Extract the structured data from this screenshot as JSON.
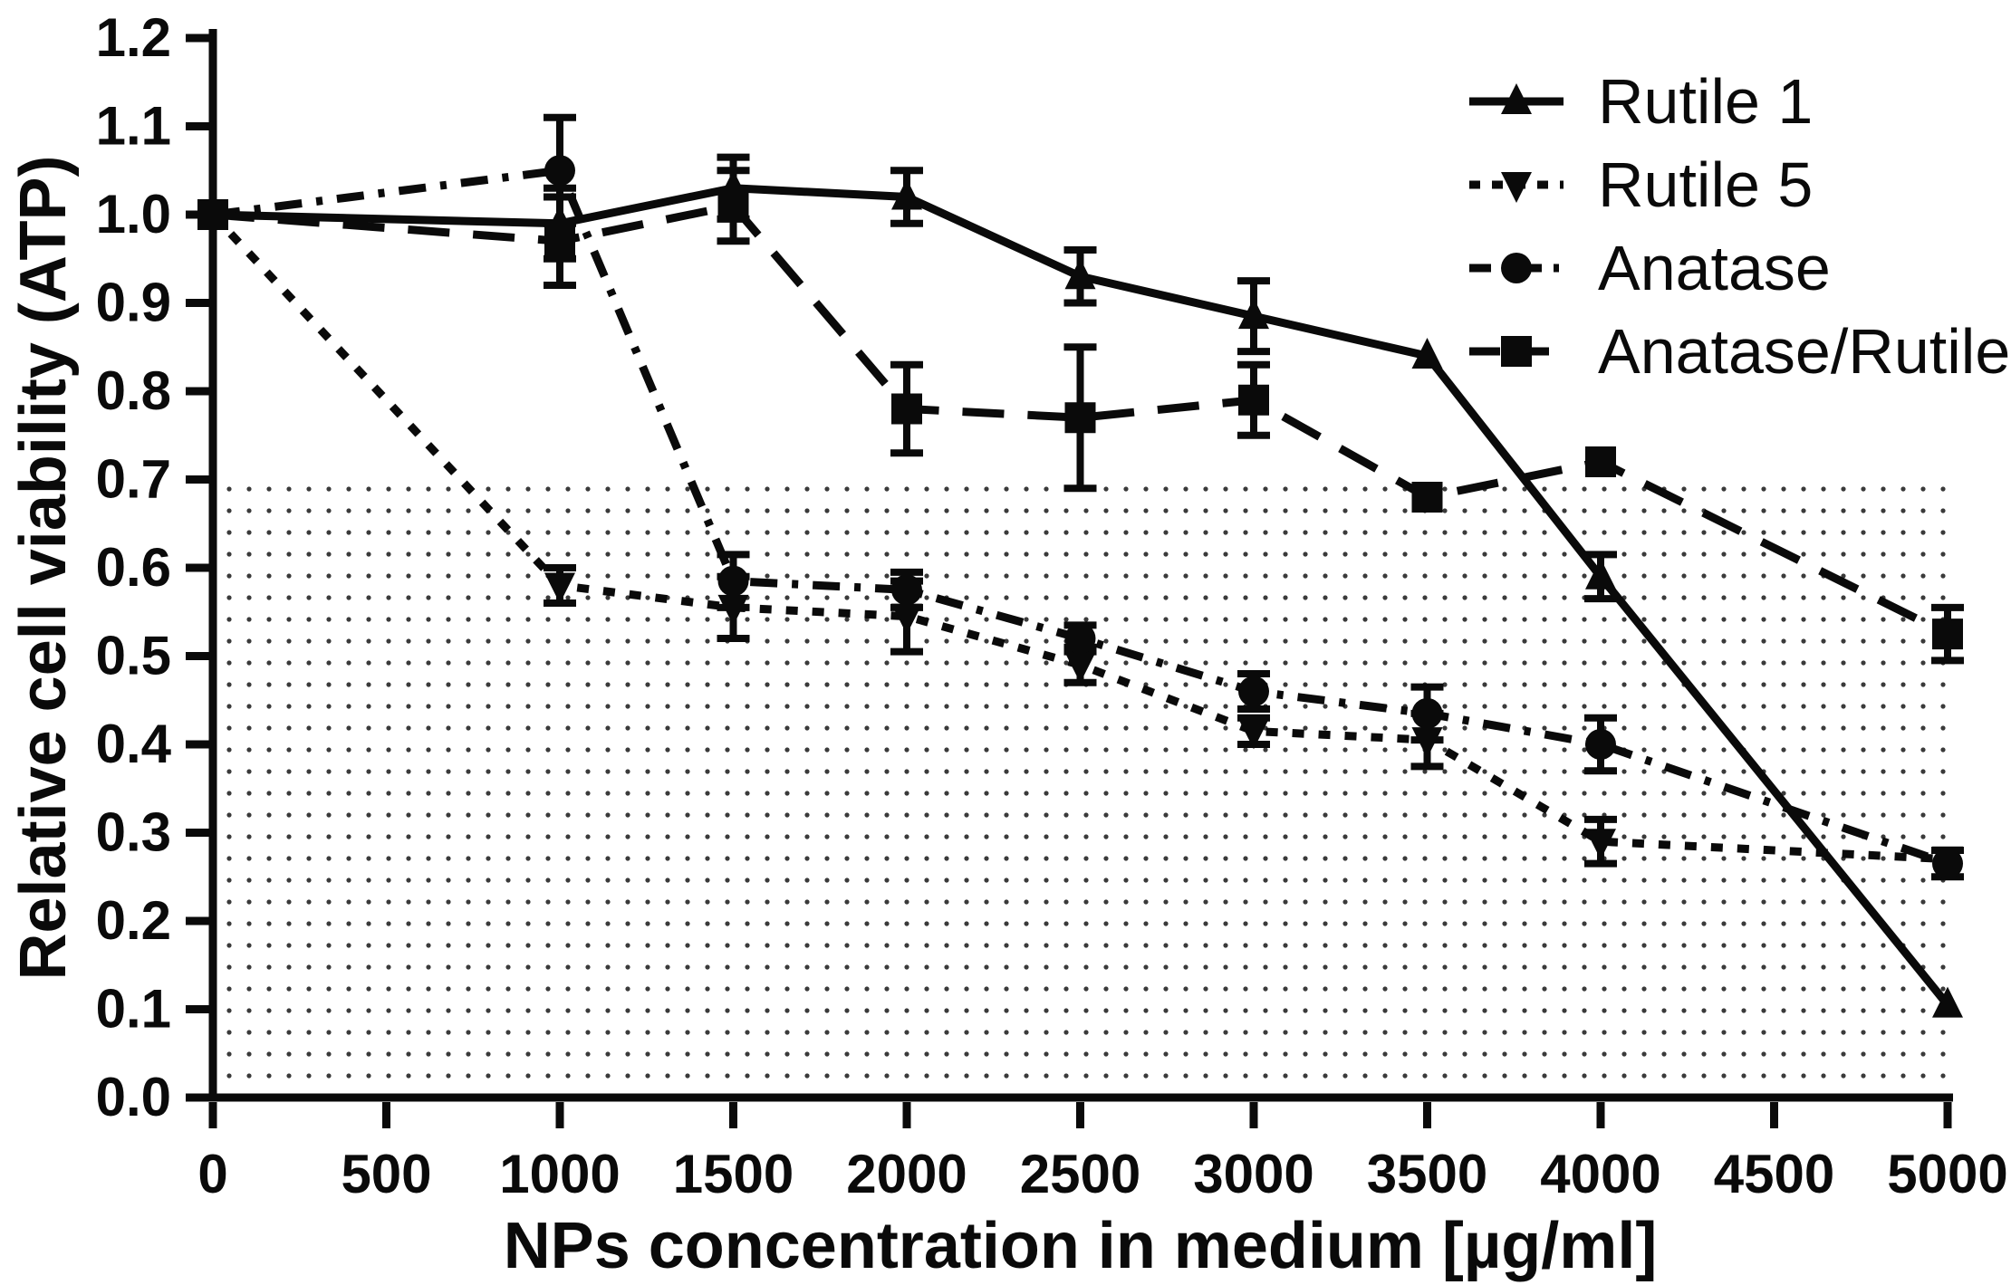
{
  "figure": {
    "background": "#ffffff",
    "ink": "#0a0a0a",
    "stipple_dot_color": "#3a3a3a"
  },
  "chart_data": {
    "type": "line",
    "title": "",
    "xlabel": "NPs concentration in medium [µg/ml]",
    "ylabel": "Relative cell viability (ATP)",
    "xlim": [
      0,
      5000
    ],
    "ylim": [
      0.0,
      1.2
    ],
    "x_ticks": [
      0,
      500,
      1000,
      1500,
      2000,
      2500,
      3000,
      3500,
      4000,
      4500,
      5000
    ],
    "y_ticks": [
      0.0,
      0.1,
      0.2,
      0.3,
      0.4,
      0.5,
      0.6,
      0.7,
      0.8,
      0.9,
      1.0,
      1.1,
      1.2
    ],
    "y_tick_decimals": 1,
    "grid": false,
    "legend_position": "top-right",
    "threshold_band": {
      "from": 0.0,
      "to": 0.71,
      "style": "stippled"
    },
    "x": [
      0,
      1000,
      1500,
      2000,
      2500,
      3000,
      3500,
      4000,
      5000
    ],
    "series": [
      {
        "name": "Rutile 1",
        "marker": "triangle-up",
        "line": "solid",
        "values": [
          1.0,
          0.99,
          1.03,
          1.02,
          0.93,
          0.885,
          0.84,
          0.59,
          0.105
        ],
        "errors": [
          0,
          0.04,
          0.035,
          0.03,
          0.03,
          0.04,
          0,
          0.025,
          0
        ]
      },
      {
        "name": "Rutile 5",
        "marker": "triangle-down",
        "line": "dotted",
        "values": [
          1.0,
          0.58,
          0.555,
          0.545,
          0.49,
          0.415,
          0.405,
          0.29,
          0.27
        ],
        "errors": [
          0,
          0.02,
          0.035,
          0.04,
          0.02,
          0.015,
          0.03,
          0.025,
          0
        ]
      },
      {
        "name": "Anatase",
        "marker": "circle",
        "line": "dash-dot",
        "values": [
          1.0,
          1.05,
          0.585,
          0.575,
          0.52,
          0.46,
          0.435,
          0.4,
          0.265
        ],
        "errors": [
          0,
          0.06,
          0.03,
          0.02,
          0.015,
          0.02,
          0.03,
          0.03,
          0.015
        ]
      },
      {
        "name": "Anatase/Rutile",
        "marker": "square",
        "line": "long-dash",
        "values": [
          1.0,
          0.97,
          1.01,
          0.78,
          0.77,
          0.79,
          0.68,
          0.72,
          0.525
        ],
        "errors": [
          0,
          0.05,
          0.04,
          0.05,
          0.08,
          0.04,
          0,
          0,
          0.03
        ]
      }
    ]
  }
}
